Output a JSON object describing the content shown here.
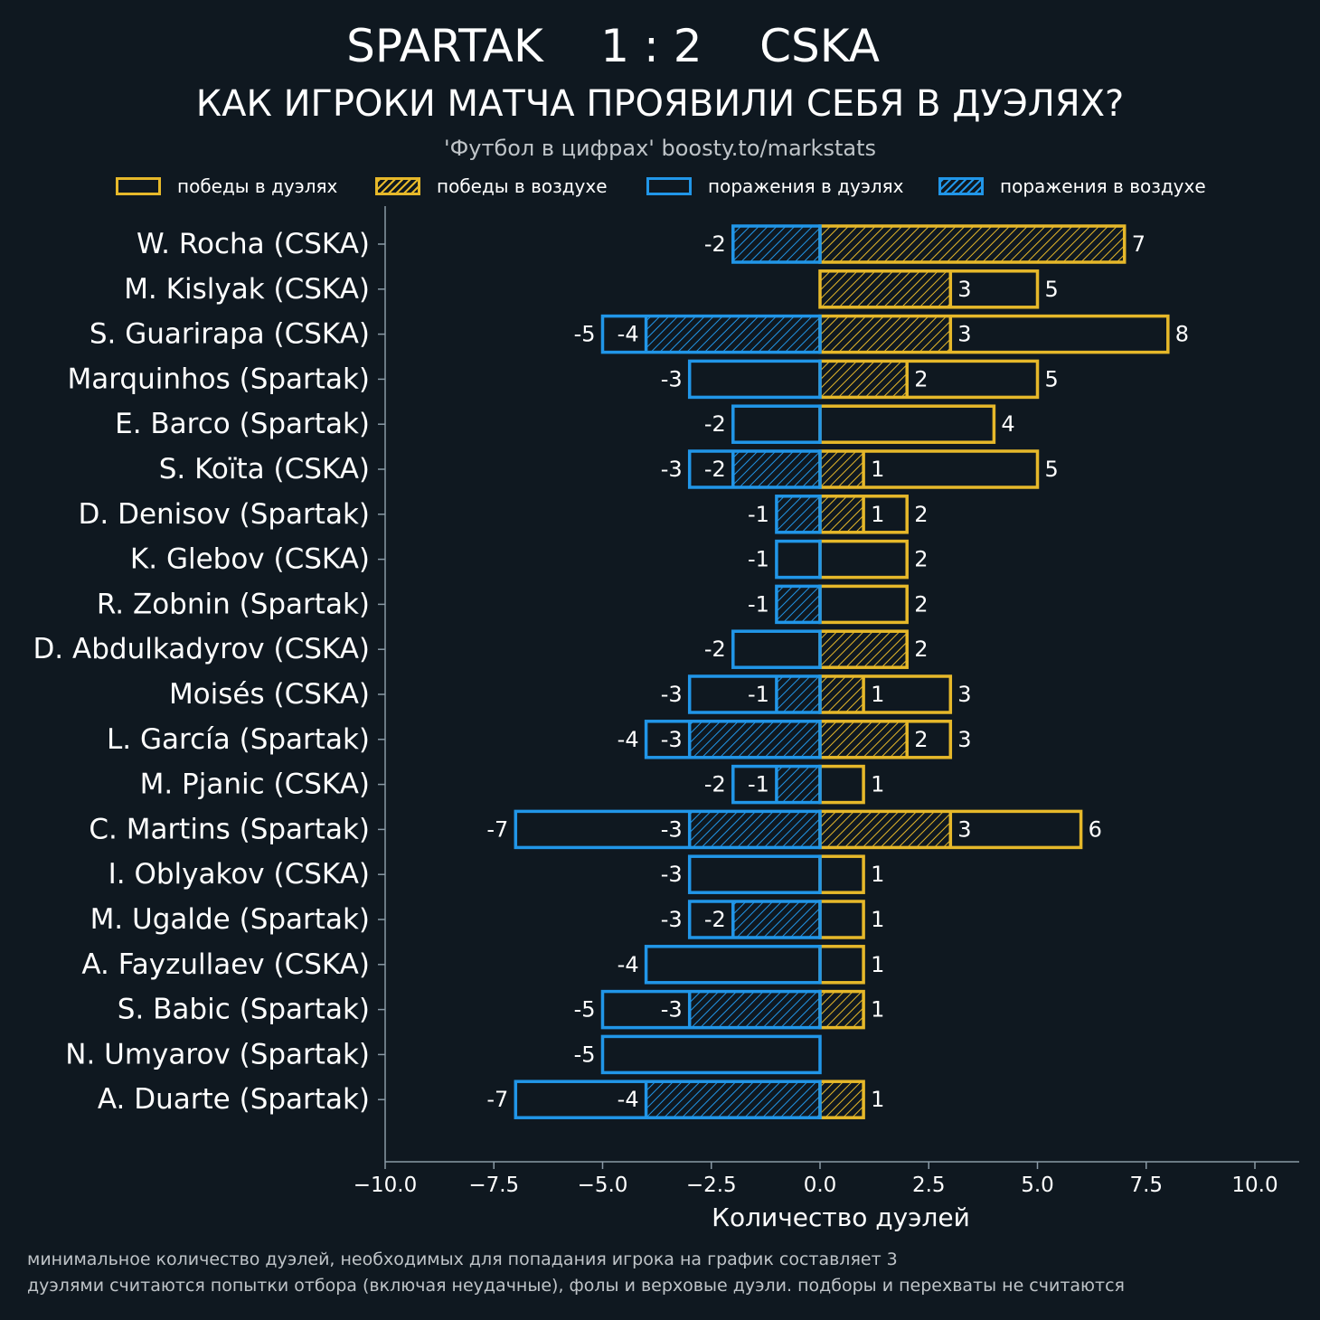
{
  "header": {
    "title": "SPARTAK    1 : 2    CSKA",
    "subtitle": "КАК ИГРОКИ МАТЧА ПРОЯВИЛИ СЕБЯ В ДУЭЛЯХ?",
    "source": "'Футбол в цифрах' boosty.to/markstats"
  },
  "legend": [
    {
      "label": "победы в дуэлях",
      "color": "#e6b82a",
      "hatched": false
    },
    {
      "label": "победы в воздухе",
      "color": "#e6b82a",
      "hatched": true
    },
    {
      "label": "поражения в дуэлях",
      "color": "#2196e8",
      "hatched": false
    },
    {
      "label": "поражения в воздухе",
      "color": "#2196e8",
      "hatched": true
    }
  ],
  "footnotes": [
    "минимальное количество дуэлей, необходимых для попадания игрока на график составляет 3",
    "дуэлями считаются попытки отбора (включая неудачные), фолы и верховые дуэли. подборы и перехваты не считаются"
  ],
  "colors": {
    "background": "#0f1820",
    "wins": "#e6b82a",
    "losses": "#2196e8",
    "axis": "#8a9aa6"
  },
  "chart_data": {
    "type": "bar",
    "orientation": "horizontal",
    "xlabel": "Количество дуэлей",
    "xlim": [
      -10.0,
      10.0
    ],
    "xticks": [
      "−10.0",
      "−7.5",
      "−5.0",
      "−2.5",
      "0.0",
      "2.5",
      "5.0",
      "7.5",
      "10.0"
    ],
    "xtick_values": [
      -10,
      -7.5,
      -5,
      -2.5,
      0,
      2.5,
      5,
      7.5,
      10
    ],
    "categories": [
      "W. Rocha (CSKA)",
      "M. Kislyak (CSKA)",
      "S. Guarirapa (CSKA)",
      "Marquinhos (Spartak)",
      "E. Barco (Spartak)",
      "S. Koïta (CSKA)",
      "D. Denisov (Spartak)",
      "K. Glebov (CSKA)",
      "R. Zobnin (Spartak)",
      "D. Abdulkadyrov (CSKA)",
      "Moisés (CSKA)",
      "L. García (Spartak)",
      "M. Pjanic (CSKA)",
      "C. Martins (Spartak)",
      "I. Oblyakov (CSKA)",
      "M. Ugalde (Spartak)",
      "A. Fayzullaev (CSKA)",
      "S. Babic (Spartak)",
      "N. Umyarov (Spartak)",
      "A. Duarte (Spartak)"
    ],
    "series": [
      {
        "name": "победы в дуэлях",
        "values": [
          7,
          5,
          8,
          5,
          4,
          5,
          2,
          2,
          2,
          2,
          3,
          3,
          1,
          6,
          1,
          1,
          1,
          1,
          0,
          1
        ]
      },
      {
        "name": "победы в воздухе",
        "values": [
          7,
          3,
          3,
          2,
          0,
          1,
          1,
          0,
          0,
          2,
          1,
          2,
          0,
          3,
          0,
          0,
          0,
          1,
          0,
          1
        ]
      },
      {
        "name": "поражения в дуэлях",
        "values": [
          -2,
          0,
          -5,
          -3,
          -2,
          -3,
          -1,
          -1,
          -1,
          -2,
          -3,
          -4,
          -2,
          -7,
          -3,
          -3,
          -4,
          -5,
          -5,
          -7
        ]
      },
      {
        "name": "поражения в воздухе",
        "values": [
          -2,
          0,
          -4,
          0,
          0,
          -2,
          -1,
          0,
          -1,
          0,
          -1,
          -3,
          -1,
          -3,
          0,
          -2,
          0,
          -3,
          0,
          -4
        ]
      }
    ],
    "labels": {
      "wins_total": [
        "7",
        "5",
        "8",
        "5",
        "4",
        "5",
        "2",
        "2",
        "2",
        "2",
        "3",
        "3",
        "1",
        "6",
        "1",
        "1",
        "1",
        "1",
        "",
        "1"
      ],
      "wins_air": [
        "",
        "3",
        "3",
        "2",
        "",
        "1",
        "1",
        "",
        "",
        "",
        "1",
        "2",
        "",
        "3",
        "",
        "",
        "",
        "",
        "",
        ""
      ],
      "losses_total": [
        "-2",
        "",
        "-5",
        "-3",
        "-2",
        "-3",
        "-1",
        "-1",
        "-1",
        "-2",
        "-3",
        "-4",
        "-2",
        "-7",
        "-3",
        "-3",
        "-4",
        "-5",
        "-5",
        "-7"
      ],
      "losses_air": [
        "",
        "",
        "-4",
        "",
        "",
        "-2",
        "",
        "",
        "",
        "",
        "-1",
        "-3",
        "-1",
        "-3",
        "",
        "-2",
        "",
        "-3",
        "",
        "-4"
      ]
    }
  }
}
